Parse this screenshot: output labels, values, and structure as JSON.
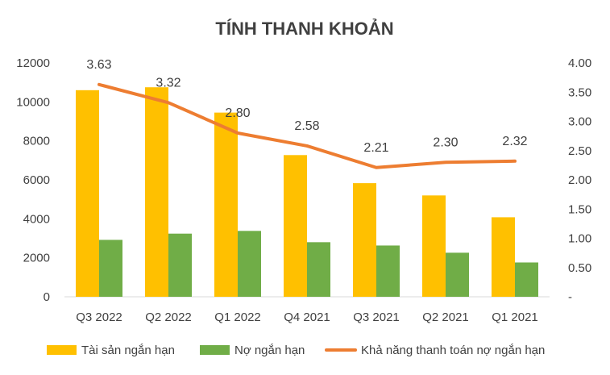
{
  "chart_data": {
    "type": "bar",
    "title": "TÍNH THANH KHOẢN",
    "categories": [
      "Q3 2022",
      "Q2 2022",
      "Q1 2022",
      "Q4 2021",
      "Q3 2021",
      "Q2 2021",
      "Q1 2021"
    ],
    "series": [
      {
        "name": "Tài sản ngắn hạn",
        "type": "bar",
        "axis": "left",
        "color": "#FFC000",
        "values": [
          10600,
          10750,
          9450,
          7270,
          5830,
          5200,
          4080
        ]
      },
      {
        "name": "Nợ ngắn hạn",
        "type": "bar",
        "axis": "left",
        "color": "#70AD47",
        "values": [
          2920,
          3240,
          3380,
          2800,
          2630,
          2260,
          1760
        ]
      },
      {
        "name": "Khả năng thanh toán nợ ngắn hạn",
        "type": "line",
        "axis": "right",
        "color": "#ED7D31",
        "values": [
          3.63,
          3.32,
          2.8,
          2.58,
          2.21,
          2.3,
          2.32
        ],
        "labels": [
          "3.63",
          "3.32",
          "2.80",
          "2.58",
          "2.21",
          "2.30",
          "2.32"
        ]
      }
    ],
    "y_left": {
      "min": 0,
      "max": 12000,
      "ticks": [
        "0",
        "2000",
        "4000",
        "6000",
        "8000",
        "10000",
        "12000"
      ]
    },
    "y_right": {
      "min": 0,
      "max": 4.0,
      "ticks": [
        "-",
        "0.50",
        "1.00",
        "1.50",
        "2.00",
        "2.50",
        "3.00",
        "3.50",
        "4.00"
      ]
    },
    "grid": false,
    "legend_position": "bottom"
  }
}
